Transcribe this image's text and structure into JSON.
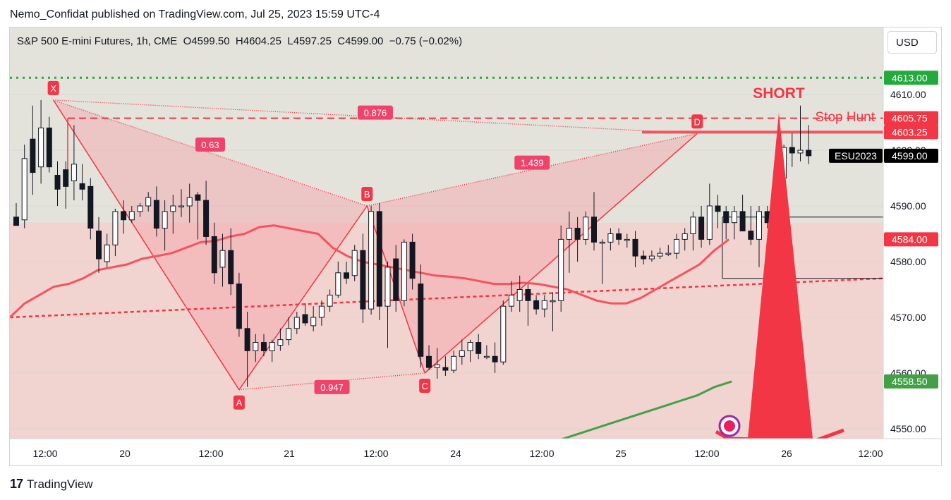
{
  "header": {
    "publisher_line": "Nemo_Confidat published on TradingView.com, Jul 25, 2023 15:59 UTC-4"
  },
  "legend": {
    "symbol": "S&P 500 E-mini Futures, 1h, CME",
    "open_label": "O",
    "open": "4599.50",
    "high_label": "H",
    "high": "4604.25",
    "low_label": "L",
    "low": "4597.25",
    "close_label": "C",
    "close": "4599.00",
    "change": "−0.75 (−0.02%)"
  },
  "currency_button": "USD",
  "footer": {
    "brand": "TradingView",
    "brand_mark": "17"
  },
  "colors": {
    "up_candle": "#ffffff",
    "down_candle": "#131722",
    "pattern_fill": "#f7a1a8",
    "pattern_line": "#f23645",
    "ema_fast": "#f7525f",
    "ema_slow": "#43a047",
    "trend_dotted": "#f23645",
    "target_green": "#22ab3c",
    "plot_bg_upper": "#e3e3dc",
    "plot_bg_lower": "#f1d3cf",
    "last_price_tag": "#000000",
    "annotation": "#f23645"
  },
  "chart_data": {
    "type": "candlestick",
    "ylim": [
      4545,
      4620
    ],
    "y_ticks": [
      4550,
      4560,
      4570,
      4580,
      4590,
      4600,
      4610
    ],
    "x_tick_labels": [
      "12:00",
      "20",
      "12:00",
      "21",
      "12:00",
      "24",
      "12:00",
      "25",
      "12:00",
      "26",
      "12:00"
    ],
    "price_tags": [
      {
        "value": 4613.0,
        "label": "4613.00",
        "color": "#22ab3c"
      },
      {
        "value": 4605.75,
        "label": "4605.75",
        "color": "#f23645"
      },
      {
        "value": 4603.25,
        "label": "4603.25",
        "color": "#f23645"
      },
      {
        "value": 4599.0,
        "label": "4599.00",
        "color": "#000000",
        "symbol": "ESU2023"
      },
      {
        "value": 4584.0,
        "label": "4584.00",
        "color": "#f23645"
      },
      {
        "value": 4558.5,
        "label": "4558.50",
        "color": "#43a047"
      }
    ],
    "candles": [
      {
        "o": 4588.0,
        "h": 4590.5,
        "l": 4586.5,
        "c": 4586.5
      },
      {
        "o": 4587.5,
        "h": 4601.0,
        "l": 4586.0,
        "c": 4598.5
      },
      {
        "o": 4602.0,
        "h": 4608.0,
        "l": 4592.0,
        "c": 4596.0
      },
      {
        "o": 4597.0,
        "h": 4609.0,
        "l": 4594.0,
        "c": 4604.0
      },
      {
        "o": 4604.0,
        "h": 4606.0,
        "l": 4596.0,
        "c": 4597.0
      },
      {
        "o": 4595.5,
        "h": 4598.0,
        "l": 4590.0,
        "c": 4593.0
      },
      {
        "o": 4596.5,
        "h": 4598.0,
        "l": 4589.5,
        "c": 4593.5
      },
      {
        "o": 4594.5,
        "h": 4604.5,
        "l": 4591.0,
        "c": 4597.5
      },
      {
        "o": 4594.0,
        "h": 4597.5,
        "l": 4591.0,
        "c": 4593.0
      },
      {
        "o": 4593.5,
        "h": 4595.0,
        "l": 4584.0,
        "c": 4586.0
      },
      {
        "o": 4585.5,
        "h": 4588.0,
        "l": 4578.0,
        "c": 4580.5
      },
      {
        "o": 4580.0,
        "h": 4585.0,
        "l": 4579.0,
        "c": 4583.0
      },
      {
        "o": 4583.0,
        "h": 4589.5,
        "l": 4581.0,
        "c": 4589.0
      },
      {
        "o": 4589.0,
        "h": 4591.0,
        "l": 4585.0,
        "c": 4587.5
      },
      {
        "o": 4587.5,
        "h": 4590.0,
        "l": 4587.0,
        "c": 4589.0
      },
      {
        "o": 4589.0,
        "h": 4590.5,
        "l": 4588.0,
        "c": 4590.0
      },
      {
        "o": 4590.0,
        "h": 4592.5,
        "l": 4589.0,
        "c": 4591.5
      },
      {
        "o": 4591.0,
        "h": 4593.5,
        "l": 4584.5,
        "c": 4586.0
      },
      {
        "o": 4586.0,
        "h": 4591.0,
        "l": 4582.0,
        "c": 4589.0
      },
      {
        "o": 4589.0,
        "h": 4592.0,
        "l": 4585.0,
        "c": 4590.0
      },
      {
        "o": 4590.0,
        "h": 4593.0,
        "l": 4588.0,
        "c": 4590.0
      },
      {
        "o": 4590.0,
        "h": 4594.0,
        "l": 4587.0,
        "c": 4591.5
      },
      {
        "o": 4592.0,
        "h": 4592.5,
        "l": 4584.0,
        "c": 4591.0
      },
      {
        "o": 4591.0,
        "h": 4594.5,
        "l": 4583.0,
        "c": 4584.5
      },
      {
        "o": 4584.5,
        "h": 4587.0,
        "l": 4576.0,
        "c": 4578.0
      },
      {
        "o": 4579.0,
        "h": 4585.0,
        "l": 4575.5,
        "c": 4582.0
      },
      {
        "o": 4582.0,
        "h": 4586.0,
        "l": 4574.0,
        "c": 4576.0
      },
      {
        "o": 4576.0,
        "h": 4578.0,
        "l": 4566.5,
        "c": 4568.0
      },
      {
        "o": 4568.0,
        "h": 4571.0,
        "l": 4557.5,
        "c": 4564.0
      },
      {
        "o": 4564.0,
        "h": 4567.0,
        "l": 4562.0,
        "c": 4565.5
      },
      {
        "o": 4565.5,
        "h": 4567.0,
        "l": 4563.0,
        "c": 4564.0
      },
      {
        "o": 4564.0,
        "h": 4566.0,
        "l": 4562.0,
        "c": 4565.5
      },
      {
        "o": 4565.0,
        "h": 4568.0,
        "l": 4564.0,
        "c": 4566.0
      },
      {
        "o": 4566.0,
        "h": 4570.0,
        "l": 4565.0,
        "c": 4568.0
      },
      {
        "o": 4568.0,
        "h": 4571.0,
        "l": 4567.0,
        "c": 4570.0
      },
      {
        "o": 4570.5,
        "h": 4572.5,
        "l": 4568.5,
        "c": 4569.0
      },
      {
        "o": 4568.5,
        "h": 4572.0,
        "l": 4567.5,
        "c": 4570.0
      },
      {
        "o": 4570.0,
        "h": 4573.0,
        "l": 4568.5,
        "c": 4572.0
      },
      {
        "o": 4572.0,
        "h": 4575.0,
        "l": 4571.0,
        "c": 4574.0
      },
      {
        "o": 4574.0,
        "h": 4580.0,
        "l": 4573.5,
        "c": 4578.0
      },
      {
        "o": 4578.0,
        "h": 4580.0,
        "l": 4576.0,
        "c": 4577.0
      },
      {
        "o": 4577.5,
        "h": 4583.0,
        "l": 4576.5,
        "c": 4582.0
      },
      {
        "o": 4582.0,
        "h": 4585.0,
        "l": 4569.0,
        "c": 4571.5
      },
      {
        "o": 4571.5,
        "h": 4590.0,
        "l": 4570.5,
        "c": 4589.0
      },
      {
        "o": 4589.0,
        "h": 4590.5,
        "l": 4569.5,
        "c": 4572.0
      },
      {
        "o": 4572.0,
        "h": 4580.0,
        "l": 4564.5,
        "c": 4579.0
      },
      {
        "o": 4580.5,
        "h": 4583.0,
        "l": 4571.0,
        "c": 4573.0
      },
      {
        "o": 4573.0,
        "h": 4584.0,
        "l": 4572.0,
        "c": 4583.5
      },
      {
        "o": 4583.5,
        "h": 4585.0,
        "l": 4575.0,
        "c": 4577.0
      },
      {
        "o": 4576.0,
        "h": 4579.5,
        "l": 4561.0,
        "c": 4563.0
      },
      {
        "o": 4563.0,
        "h": 4565.0,
        "l": 4560.5,
        "c": 4561.0
      },
      {
        "o": 4561.0,
        "h": 4564.5,
        "l": 4559.0,
        "c": 4561.5
      },
      {
        "o": 4561.0,
        "h": 4563.0,
        "l": 4559.5,
        "c": 4560.5
      },
      {
        "o": 4560.5,
        "h": 4564.0,
        "l": 4560.0,
        "c": 4563.0
      },
      {
        "o": 4563.0,
        "h": 4566.0,
        "l": 4561.5,
        "c": 4564.0
      },
      {
        "o": 4564.0,
        "h": 4566.0,
        "l": 4562.0,
        "c": 4565.5
      },
      {
        "o": 4565.5,
        "h": 4567.0,
        "l": 4562.5,
        "c": 4563.5
      },
      {
        "o": 4563.0,
        "h": 4565.0,
        "l": 4562.5,
        "c": 4563.0
      },
      {
        "o": 4563.0,
        "h": 4565.5,
        "l": 4560.0,
        "c": 4562.0
      },
      {
        "o": 4562.0,
        "h": 4573.0,
        "l": 4561.5,
        "c": 4572.0
      },
      {
        "o": 4572.0,
        "h": 4576.5,
        "l": 4571.0,
        "c": 4574.0
      },
      {
        "o": 4573.0,
        "h": 4577.5,
        "l": 4571.0,
        "c": 4575.0
      },
      {
        "o": 4575.0,
        "h": 4576.0,
        "l": 4568.5,
        "c": 4573.0
      },
      {
        "o": 4573.0,
        "h": 4574.0,
        "l": 4570.5,
        "c": 4571.5
      },
      {
        "o": 4571.5,
        "h": 4574.0,
        "l": 4570.0,
        "c": 4573.0
      },
      {
        "o": 4573.0,
        "h": 4574.5,
        "l": 4567.5,
        "c": 4573.0
      },
      {
        "o": 4573.0,
        "h": 4586.5,
        "l": 4571.0,
        "c": 4584.0
      },
      {
        "o": 4584.0,
        "h": 4589.0,
        "l": 4578.0,
        "c": 4586.0
      },
      {
        "o": 4586.0,
        "h": 4588.0,
        "l": 4580.0,
        "c": 4584.0
      },
      {
        "o": 4584.0,
        "h": 4589.0,
        "l": 4583.0,
        "c": 4588.0
      },
      {
        "o": 4588.0,
        "h": 4592.5,
        "l": 4582.0,
        "c": 4583.5
      },
      {
        "o": 4583.5,
        "h": 4584.0,
        "l": 4576.0,
        "c": 4583.5
      },
      {
        "o": 4583.5,
        "h": 4586.0,
        "l": 4582.0,
        "c": 4585.0
      },
      {
        "o": 4585.0,
        "h": 4586.0,
        "l": 4583.0,
        "c": 4584.0
      },
      {
        "o": 4584.0,
        "h": 4585.0,
        "l": 4582.5,
        "c": 4584.0
      },
      {
        "o": 4584.0,
        "h": 4585.5,
        "l": 4579.0,
        "c": 4581.0
      },
      {
        "o": 4581.0,
        "h": 4582.0,
        "l": 4579.5,
        "c": 4580.5
      },
      {
        "o": 4580.5,
        "h": 4582.0,
        "l": 4580.0,
        "c": 4581.0
      },
      {
        "o": 4581.0,
        "h": 4582.5,
        "l": 4580.5,
        "c": 4581.5
      },
      {
        "o": 4581.5,
        "h": 4583.0,
        "l": 4581.0,
        "c": 4581.5
      },
      {
        "o": 4581.5,
        "h": 4585.0,
        "l": 4580.5,
        "c": 4584.0
      },
      {
        "o": 4584.0,
        "h": 4586.0,
        "l": 4582.0,
        "c": 4585.0
      },
      {
        "o": 4585.0,
        "h": 4589.0,
        "l": 4582.0,
        "c": 4588.0
      },
      {
        "o": 4588.0,
        "h": 4590.0,
        "l": 4582.5,
        "c": 4584.0
      },
      {
        "o": 4584.0,
        "h": 4594.0,
        "l": 4583.0,
        "c": 4590.0
      },
      {
        "o": 4590.0,
        "h": 4592.0,
        "l": 4586.0,
        "c": 4589.0
      },
      {
        "o": 4589.0,
        "h": 4590.0,
        "l": 4584.0,
        "c": 4587.0
      },
      {
        "o": 4587.0,
        "h": 4590.0,
        "l": 4584.0,
        "c": 4589.0
      },
      {
        "o": 4589.0,
        "h": 4592.0,
        "l": 4585.5,
        "c": 4585.5
      },
      {
        "o": 4585.5,
        "h": 4590.0,
        "l": 4583.0,
        "c": 4584.0
      },
      {
        "o": 4584.0,
        "h": 4590.0,
        "l": 4579.0,
        "c": 4589.0
      },
      {
        "o": 4589.0,
        "h": 4590.0,
        "l": 4586.0,
        "c": 4587.0
      },
      {
        "o": 4587.0,
        "h": 4595.0,
        "l": 4586.0,
        "c": 4595.0
      },
      {
        "o": 4595.0,
        "h": 4601.0,
        "l": 4594.0,
        "c": 4600.5
      },
      {
        "o": 4600.5,
        "h": 4603.0,
        "l": 4597.0,
        "c": 4599.5
      },
      {
        "o": 4599.5,
        "h": 4608.0,
        "l": 4598.0,
        "c": 4600.0
      },
      {
        "o": 4600.0,
        "h": 4604.5,
        "l": 4597.5,
        "c": 4599.0
      }
    ],
    "ema_fast": [
      4570.0,
      4572.5,
      4574.0,
      4575.5,
      4576.0,
      4577.0,
      4578.5,
      4579.0,
      4579.5,
      4580.5,
      4581.0,
      4581.5,
      4582.5,
      4583.5,
      4583.7,
      4584.5,
      4585.0,
      4586.2,
      4586.5,
      4586.0,
      4585.5,
      4585.0,
      4582.5,
      4581.0,
      4580.0,
      4579.5,
      4579.0,
      4578.5,
      4578.0,
      4577.5,
      4577.3,
      4577.0,
      4576.5,
      4576.0,
      4576.0,
      4576.2,
      4576.0,
      4575.5,
      4575.0,
      4574.0,
      4573.0,
      4572.5,
      4572.5,
      4573.5,
      4575.0,
      4576.5,
      4578.0,
      4579.5,
      4582.0,
      4584.0
    ],
    "ema_slow": [
      4545.0,
      4546.0,
      4547.0,
      4548.0,
      4549.0,
      4550.0,
      4551.0,
      4552.0,
      4553.0,
      4554.0,
      4555.0,
      4556.0,
      4557.5,
      4558.5
    ],
    "trend_dotted": {
      "from": 4570.0,
      "to": 4577.0
    },
    "horizontal_levels": [
      {
        "value": 4613.0,
        "style": "dotted",
        "color": "#22ab3c"
      },
      {
        "value": 4605.75,
        "style": "dashed",
        "color": "#f23645"
      },
      {
        "value": 4603.25,
        "style": "solid",
        "color": "#f7525f"
      }
    ],
    "harmonic_pattern": {
      "points": [
        {
          "label": "X",
          "price": 4609.0
        },
        {
          "label": "A",
          "price": 4557.0
        },
        {
          "label": "B",
          "price": 4590.0
        },
        {
          "label": "C",
          "price": 4560.0
        },
        {
          "label": "D",
          "price": 4603.0
        }
      ],
      "ratios": [
        {
          "label": "0.63"
        },
        {
          "label": "0.947"
        },
        {
          "label": "1.439"
        },
        {
          "label": "0.876"
        }
      ]
    },
    "range_box": {
      "top": 4588.0,
      "bottom": 4577.0
    },
    "annotations": [
      "SHORT",
      "Stop Hunt"
    ]
  }
}
